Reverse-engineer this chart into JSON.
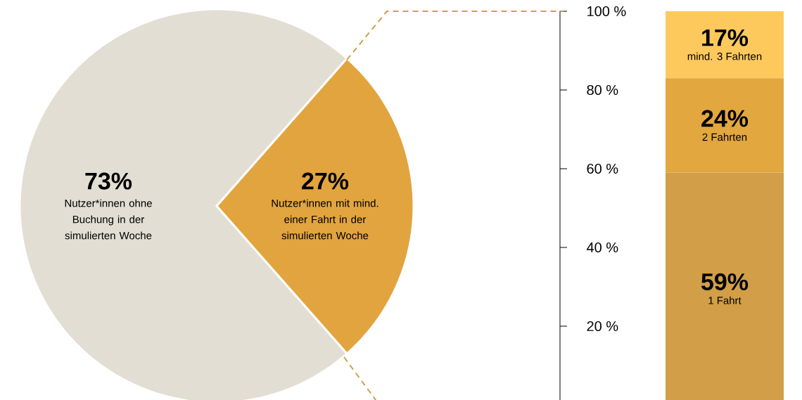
{
  "chart_data": [
    {
      "type": "pie",
      "categories": [
        "Nutzer*innen ohne Buchung in der simulierten Woche",
        "Nutzer*innen mit mind. einer Fahrt in der simulierten Woche"
      ],
      "values": [
        73,
        27
      ],
      "colors": [
        "#e3ded3",
        "#e2a43e"
      ],
      "value_labels": [
        "73%",
        "27%"
      ]
    },
    {
      "type": "bar",
      "stacked": true,
      "categories": [
        null
      ],
      "ylim": [
        0,
        100
      ],
      "yticks": [
        {
          "value": 20,
          "label": "20 %"
        },
        {
          "value": 40,
          "label": "40 %"
        },
        {
          "value": 60,
          "label": "60 %"
        },
        {
          "value": 80,
          "label": "80 %"
        },
        {
          "value": 100,
          "label": "100 %"
        }
      ],
      "series": [
        {
          "name": "1 Fahrt",
          "color": "#d29e47",
          "values": [
            59
          ],
          "value_labels": [
            "59%"
          ]
        },
        {
          "name": "2 Fahrten",
          "color": "#e3a73f",
          "values": [
            24
          ],
          "value_labels": [
            "24%"
          ]
        },
        {
          "name": "mind. 3 Fahrten",
          "color": "#fec95c",
          "values": [
            17
          ],
          "value_labels": [
            "17%"
          ]
        }
      ]
    }
  ]
}
